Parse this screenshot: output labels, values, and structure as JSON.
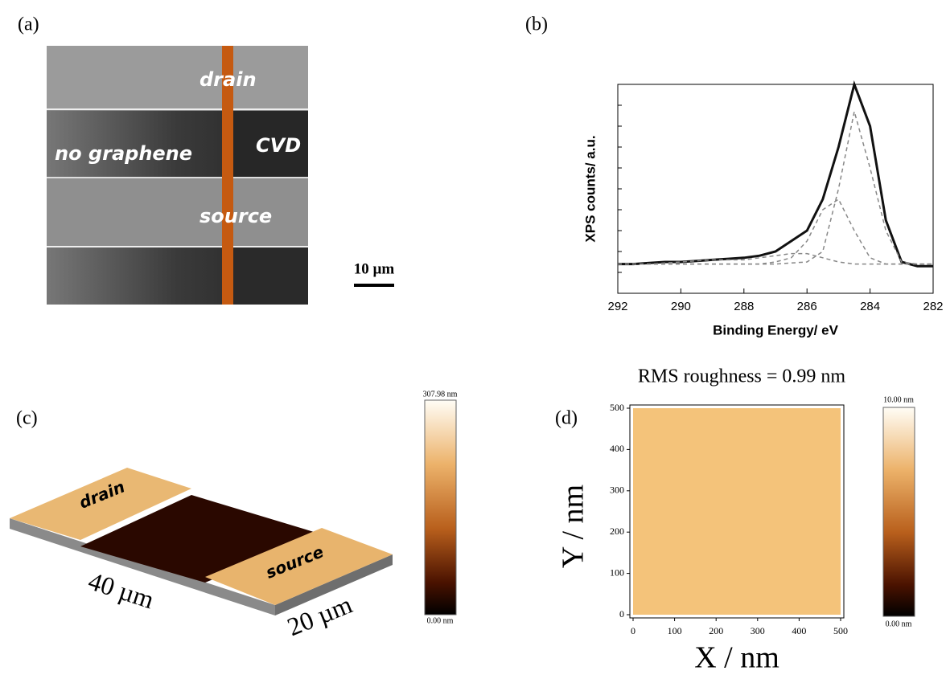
{
  "panels": {
    "a": "(a)",
    "b": "(b)",
    "c": "(c)",
    "d": "(d)"
  },
  "sem": {
    "drain": "drain",
    "cvd": "CVD graphene",
    "none": "no graphene",
    "source": "source",
    "scale_bar": "10 µm"
  },
  "afm_3d": {
    "drain": "drain",
    "source": "source",
    "length": "40 µm",
    "width": "20 µm",
    "colorbar_max": "307.98 nm",
    "colorbar_min": "0.00 nm"
  },
  "chart_data": [
    {
      "type": "line",
      "x_label": "Binding Energy/ eV",
      "y_label": "XPS counts/ a.u.",
      "x": [
        292,
        291.5,
        291,
        290.5,
        290,
        289.5,
        289,
        288.5,
        288,
        287.5,
        287,
        286.5,
        286,
        285.5,
        285,
        284.5,
        284,
        283.5,
        283,
        282.5,
        282
      ],
      "xlim": [
        292,
        282
      ],
      "xticks": [
        292,
        290,
        288,
        286,
        284,
        282
      ],
      "ylim": [
        0,
        1
      ],
      "series": [
        {
          "color": "#111111",
          "width": 3,
          "dash": false,
          "values": [
            0.14,
            0.14,
            0.145,
            0.15,
            0.15,
            0.155,
            0.16,
            0.165,
            0.17,
            0.18,
            0.2,
            0.25,
            0.3,
            0.45,
            0.7,
            1.0,
            0.8,
            0.35,
            0.15,
            0.13,
            0.13
          ]
        },
        {
          "color": "#888888",
          "width": 1.5,
          "dash": true,
          "values": [
            0.14,
            0.14,
            0.14,
            0.14,
            0.14,
            0.14,
            0.14,
            0.14,
            0.14,
            0.14,
            0.14,
            0.145,
            0.15,
            0.2,
            0.5,
            0.87,
            0.6,
            0.3,
            0.15,
            0.14,
            0.14
          ]
        },
        {
          "color": "#888888",
          "width": 1.5,
          "dash": true,
          "values": [
            0.14,
            0.14,
            0.14,
            0.14,
            0.14,
            0.14,
            0.14,
            0.14,
            0.14,
            0.14,
            0.15,
            0.17,
            0.25,
            0.4,
            0.45,
            0.3,
            0.17,
            0.14,
            0.14,
            0.14,
            0.14
          ]
        },
        {
          "color": "#888888",
          "width": 1.5,
          "dash": true,
          "values": [
            0.14,
            0.14,
            0.14,
            0.145,
            0.15,
            0.155,
            0.16,
            0.16,
            0.16,
            0.17,
            0.18,
            0.19,
            0.19,
            0.17,
            0.15,
            0.14,
            0.14,
            0.14,
            0.14,
            0.14,
            0.14
          ]
        }
      ]
    },
    {
      "type": "image",
      "title": "RMS roughness = 0.99 nm",
      "x_label": "X / nm",
      "y_label": "Y / nm",
      "xlim": [
        0,
        500
      ],
      "xticks": [
        0,
        100,
        200,
        300,
        400,
        500
      ],
      "ylim": [
        0,
        500
      ],
      "yticks": [
        0,
        100,
        200,
        300,
        400,
        500
      ],
      "colorbar_max": "10.00 nm",
      "colorbar_min": "0.00 nm"
    }
  ]
}
